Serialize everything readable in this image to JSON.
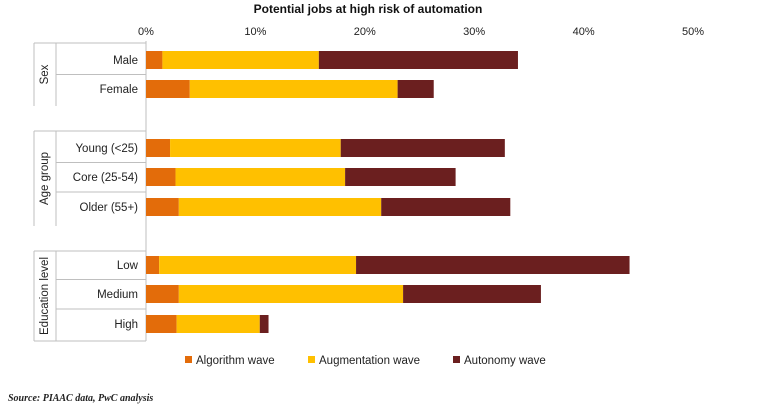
{
  "chart_data": {
    "type": "bar",
    "orientation": "horizontal",
    "stacked": true,
    "title": "Potential jobs at high risk of automation",
    "xlim": [
      0,
      50
    ],
    "x_ticks": [
      "0%",
      "10%",
      "20%",
      "30%",
      "40%",
      "50%"
    ],
    "x_tick_values": [
      0,
      10,
      20,
      30,
      40,
      50
    ],
    "legend_position": "bottom",
    "grid": false,
    "groups": [
      {
        "name": "Sex",
        "categories": [
          "Male",
          "Female"
        ]
      },
      {
        "name": "Age group",
        "categories": [
          "Young (<25)",
          "Core (25-54)",
          "Older (55+)"
        ]
      },
      {
        "name": "Education level",
        "categories": [
          "Low",
          "Medium",
          "High"
        ]
      }
    ],
    "series": [
      {
        "name": "Algorithm wave",
        "color": "#e36c0a",
        "values": [
          1.5,
          4.0,
          2.2,
          2.7,
          3.0,
          1.2,
          3.0,
          2.8
        ]
      },
      {
        "name": "Augmentation wave",
        "color": "#ffc000",
        "values": [
          14.3,
          19.0,
          15.6,
          15.5,
          18.5,
          18.0,
          20.5,
          7.6
        ]
      },
      {
        "name": "Autonomy wave",
        "color": "#6b1f1f",
        "values": [
          18.2,
          3.3,
          15.0,
          10.1,
          11.8,
          25.0,
          12.6,
          0.8
        ]
      }
    ]
  },
  "source": "Source: PIAAC data, PwC analysis"
}
